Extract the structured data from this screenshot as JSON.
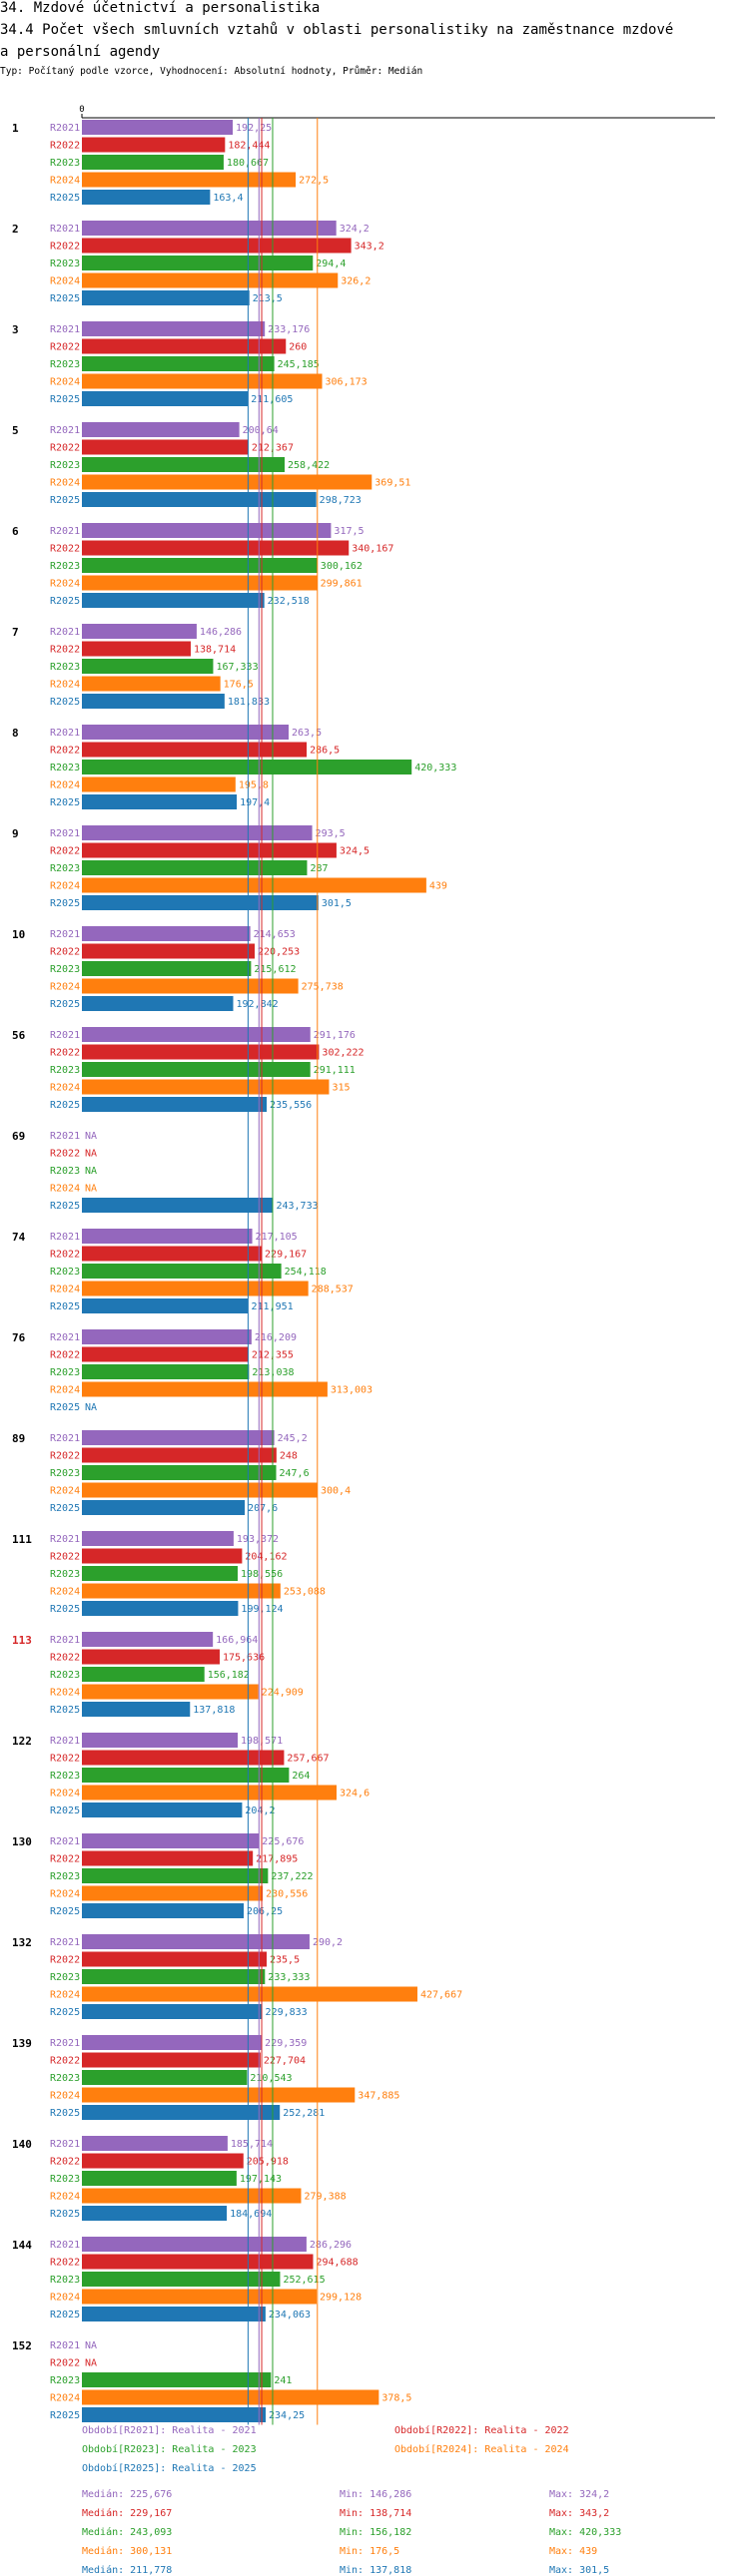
{
  "header": {
    "section": "34. Mzdové účetnictví a personalistika",
    "title_line1": "34.4 Počet všech smluvních vztahů v oblasti personalistiky na zaměstnance mzdové",
    "title_line2": "a personální agendy",
    "subtitle": "Typ: Počítaný podle vzorce, Vyhodnocení: Absolutní hodnoty, Průměr: Medián"
  },
  "colors": {
    "R2021": "#9467bd",
    "R2022": "#d62728",
    "R2023": "#2ca02c",
    "R2024": "#ff7f0e",
    "R2025": "#1f77b4",
    "highlight": "#d62728"
  },
  "chart_data": {
    "type": "bar",
    "orientation": "horizontal",
    "axis_zero_label": "0",
    "xlim": [
      0,
      439
    ],
    "series_names": [
      "R2021",
      "R2022",
      "R2023",
      "R2024",
      "R2025"
    ],
    "na_label": "NA",
    "highlight_group": "113",
    "groups": [
      {
        "id": "1",
        "values": [
          192.25,
          182.444,
          180.667,
          272.5,
          163.4
        ]
      },
      {
        "id": "2",
        "values": [
          324.2,
          343.2,
          294.4,
          326.2,
          213.5
        ]
      },
      {
        "id": "3",
        "values": [
          233.176,
          260,
          245.185,
          306.173,
          211.605
        ]
      },
      {
        "id": "5",
        "values": [
          200.64,
          212.367,
          258.422,
          369.51,
          298.723
        ]
      },
      {
        "id": "6",
        "values": [
          317.5,
          340.167,
          300.162,
          299.861,
          232.518
        ]
      },
      {
        "id": "7",
        "values": [
          146.286,
          138.714,
          167.333,
          176.5,
          181.833
        ]
      },
      {
        "id": "8",
        "values": [
          263.5,
          286.5,
          420.333,
          195.8,
          197.4
        ]
      },
      {
        "id": "9",
        "values": [
          293.5,
          324.5,
          287,
          439,
          301.5
        ]
      },
      {
        "id": "10",
        "values": [
          214.653,
          220.253,
          215.612,
          275.738,
          192.842
        ]
      },
      {
        "id": "56",
        "values": [
          291.176,
          302.222,
          291.111,
          315,
          235.556
        ]
      },
      {
        "id": "69",
        "values": [
          null,
          null,
          null,
          null,
          243.733
        ]
      },
      {
        "id": "74",
        "values": [
          217.105,
          229.167,
          254.118,
          288.537,
          211.951
        ]
      },
      {
        "id": "76",
        "values": [
          216.209,
          212.355,
          213.038,
          313.003,
          null
        ]
      },
      {
        "id": "89",
        "values": [
          245.2,
          248,
          247.6,
          300.4,
          207.6
        ]
      },
      {
        "id": "111",
        "values": [
          193.372,
          204.162,
          198.556,
          253.088,
          199.124
        ]
      },
      {
        "id": "113",
        "values": [
          166.964,
          175.636,
          156.182,
          224.909,
          137.818
        ]
      },
      {
        "id": "122",
        "values": [
          198.571,
          257.667,
          264,
          324.6,
          204.2
        ]
      },
      {
        "id": "130",
        "values": [
          225.676,
          217.895,
          237.222,
          230.556,
          206.25
        ]
      },
      {
        "id": "132",
        "values": [
          290.2,
          235.5,
          233.333,
          427.667,
          229.833
        ]
      },
      {
        "id": "139",
        "values": [
          229.359,
          227.704,
          210.543,
          347.885,
          252.281
        ]
      },
      {
        "id": "140",
        "values": [
          185.714,
          205.918,
          197.143,
          279.388,
          184.694
        ]
      },
      {
        "id": "144",
        "values": [
          286.296,
          294.688,
          252.615,
          299.128,
          234.063
        ]
      },
      {
        "id": "152",
        "values": [
          null,
          null,
          241,
          378.5,
          234.25
        ]
      }
    ],
    "median_lines": [
      225.676,
      229.167,
      243.093,
      300.131,
      211.778
    ]
  },
  "legend": [
    {
      "series": "R2021",
      "label": "Období[R2021]: Realita - 2021"
    },
    {
      "series": "R2022",
      "label": "Období[R2022]: Realita - 2022"
    },
    {
      "series": "R2023",
      "label": "Období[R2023]: Realita - 2023"
    },
    {
      "series": "R2024",
      "label": "Období[R2024]: Realita - 2024"
    },
    {
      "series": "R2025",
      "label": "Období[R2025]: Realita - 2025"
    }
  ],
  "stats": [
    {
      "series": "R2021",
      "median": "Medián: 225,676",
      "min": "Min: 146,286",
      "max": "Max: 324,2"
    },
    {
      "series": "R2022",
      "median": "Medián: 229,167",
      "min": "Min: 138,714",
      "max": "Max: 343,2"
    },
    {
      "series": "R2023",
      "median": "Medián: 243,093",
      "min": "Min: 156,182",
      "max": "Max: 420,333"
    },
    {
      "series": "R2024",
      "median": "Medián: 300,131",
      "min": "Min: 176,5",
      "max": "Max: 439"
    },
    {
      "series": "R2025",
      "median": "Medián: 211,778",
      "min": "Min: 137,818",
      "max": "Max: 301,5"
    }
  ]
}
